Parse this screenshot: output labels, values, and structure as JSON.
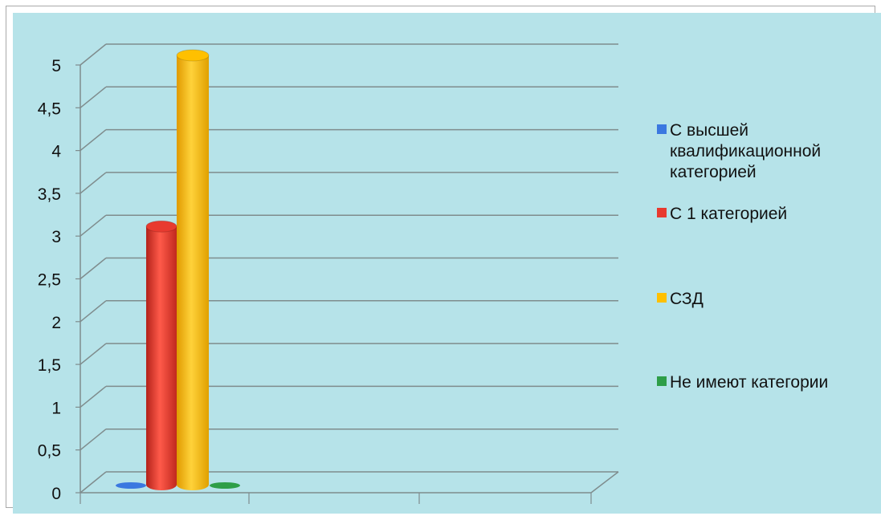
{
  "chart_data": {
    "type": "bar",
    "style": "3d-cylinder",
    "y_tick_labels": [
      "0",
      "0,5",
      "1",
      "1,5",
      "2",
      "2,5",
      "3",
      "3,5",
      "4",
      "4,5",
      "5"
    ],
    "ylim": [
      0,
      5
    ],
    "grid": true,
    "legend_position": "right",
    "background_color": "#b6e3e9",
    "series": [
      {
        "name": "С высшей квалификационной категорией",
        "name_lines": [
          "С высшей",
          "квалификационной",
          "категорией"
        ],
        "color": "#3b78e0",
        "values": [
          0
        ]
      },
      {
        "name": "С 1 категорией",
        "name_lines": [
          "С 1 категорией"
        ],
        "color": "#e83a2f",
        "values": [
          3
        ]
      },
      {
        "name": "СЗД",
        "name_lines": [
          "СЗД"
        ],
        "color": "#ffc000",
        "values": [
          5
        ]
      },
      {
        "name": "Не имеют категории",
        "name_lines": [
          "Не имеют категории"
        ],
        "color": "#2e9e48",
        "values": [
          0
        ]
      }
    ]
  }
}
